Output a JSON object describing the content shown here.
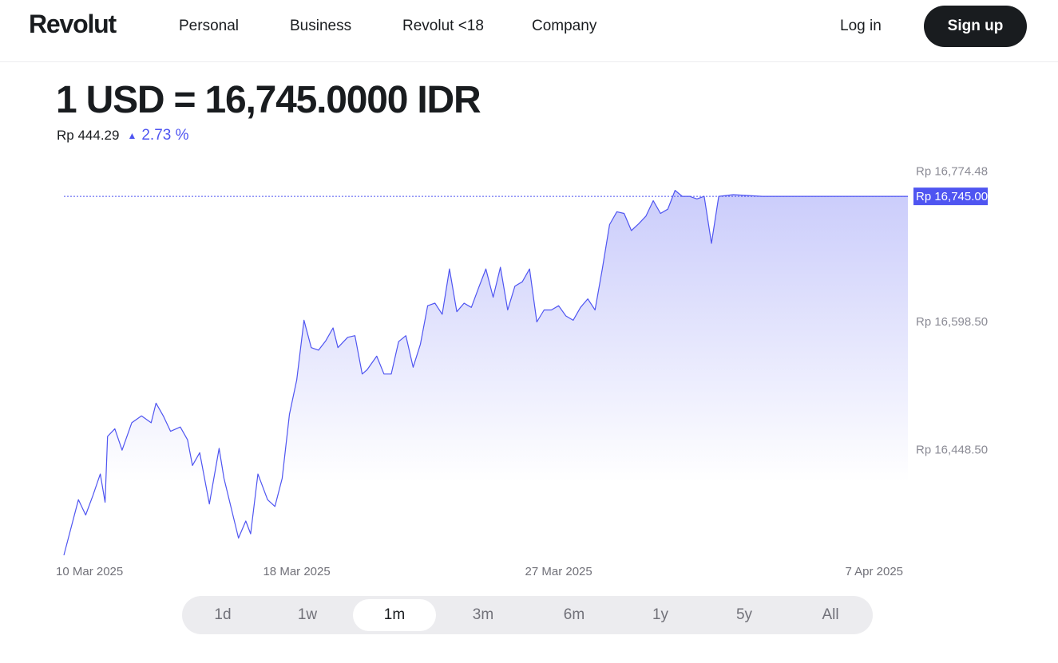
{
  "header": {
    "logo": "Revolut",
    "nav": [
      "Personal",
      "Business",
      "Revolut <18",
      "Company"
    ],
    "login_label": "Log in",
    "signup_label": "Sign up"
  },
  "rate": {
    "title": "1 USD = 16,745.0000 IDR",
    "change_amount": "Rp 444.29",
    "change_direction": "up",
    "change_percent": "2.73 %",
    "accent_color": "#4f55f1"
  },
  "range": {
    "options": [
      "1d",
      "1w",
      "1m",
      "3m",
      "6m",
      "1y",
      "5y",
      "All"
    ],
    "selected": "1m"
  },
  "chart_data": {
    "type": "area",
    "title": "",
    "xlabel": "",
    "ylabel": "",
    "series": [
      {
        "name": "",
        "color": "#4f55f1"
      }
    ],
    "x_range": [
      "2025-03-10",
      "2025-04-08"
    ],
    "ylim": [
      16323,
      16775
    ],
    "y_ticks": [
      {
        "value": 16774.48,
        "label": "Rp 16,774.48"
      },
      {
        "value": 16598.5,
        "label": "Rp 16,598.50"
      },
      {
        "value": 16448.5,
        "label": "Rp 16,448.50"
      }
    ],
    "x_ticks": [
      {
        "date": "2025-03-10",
        "label": "10 Mar 2025"
      },
      {
        "date": "2025-03-18",
        "label": "18 Mar 2025"
      },
      {
        "date": "2025-03-27",
        "label": "27 Mar 2025"
      },
      {
        "date": "2025-04-07",
        "label": "7 Apr 2025"
      }
    ],
    "current": {
      "value": 16745.0,
      "label": "Rp 16,745.00"
    },
    "points": [
      [
        "2025-03-10",
        16325
      ],
      [
        "2025-03-10T12:00",
        16390
      ],
      [
        "2025-03-10T18:00",
        16372
      ],
      [
        "2025-03-11",
        16395
      ],
      [
        "2025-03-11T06:00",
        16420
      ],
      [
        "2025-03-11T10:00",
        16387
      ],
      [
        "2025-03-11T12:00",
        16464
      ],
      [
        "2025-03-11T18:00",
        16473
      ],
      [
        "2025-03-12",
        16448
      ],
      [
        "2025-03-12T08:00",
        16480
      ],
      [
        "2025-03-12T16:00",
        16488
      ],
      [
        "2025-03-13",
        16480
      ],
      [
        "2025-03-13T04:00",
        16503
      ],
      [
        "2025-03-13T10:00",
        16488
      ],
      [
        "2025-03-13T16:00",
        16470
      ],
      [
        "2025-03-14",
        16475
      ],
      [
        "2025-03-14T06:00",
        16460
      ],
      [
        "2025-03-14T10:00",
        16430
      ],
      [
        "2025-03-14T16:00",
        16445
      ],
      [
        "2025-03-15",
        16385
      ],
      [
        "2025-03-15T08:00",
        16450
      ],
      [
        "2025-03-15T12:00",
        16415
      ],
      [
        "2025-03-15T18:00",
        16380
      ],
      [
        "2025-03-16",
        16345
      ],
      [
        "2025-03-16T06:00",
        16365
      ],
      [
        "2025-03-16T10:00",
        16350
      ],
      [
        "2025-03-16T16:00",
        16420
      ],
      [
        "2025-03-17",
        16390
      ],
      [
        "2025-03-17T06:00",
        16382
      ],
      [
        "2025-03-17T12:00",
        16415
      ],
      [
        "2025-03-17T18:00",
        16490
      ],
      [
        "2025-03-18",
        16530
      ],
      [
        "2025-03-18T06:00",
        16600
      ],
      [
        "2025-03-18T12:00",
        16568
      ],
      [
        "2025-03-18T18:00",
        16565
      ],
      [
        "2025-03-19",
        16576
      ],
      [
        "2025-03-19T06:00",
        16591
      ],
      [
        "2025-03-19T10:00",
        16568
      ],
      [
        "2025-03-19T18:00",
        16580
      ],
      [
        "2025-03-20",
        16582
      ],
      [
        "2025-03-20T06:00",
        16537
      ],
      [
        "2025-03-20T10:00",
        16542
      ],
      [
        "2025-03-20T18:00",
        16558
      ],
      [
        "2025-03-21",
        16537
      ],
      [
        "2025-03-21T06:00",
        16537
      ],
      [
        "2025-03-21T12:00",
        16575
      ],
      [
        "2025-03-21T18:00",
        16582
      ],
      [
        "2025-03-22",
        16545
      ],
      [
        "2025-03-22T06:00",
        16572
      ],
      [
        "2025-03-22T12:00",
        16617
      ],
      [
        "2025-03-22T18:00",
        16620
      ],
      [
        "2025-03-23",
        16607
      ],
      [
        "2025-03-23T06:00",
        16660
      ],
      [
        "2025-03-23T12:00",
        16610
      ],
      [
        "2025-03-23T18:00",
        16620
      ],
      [
        "2025-03-24",
        16615
      ],
      [
        "2025-03-24T06:00",
        16638
      ],
      [
        "2025-03-24T12:00",
        16660
      ],
      [
        "2025-03-24T18:00",
        16627
      ],
      [
        "2025-03-25",
        16662
      ],
      [
        "2025-03-25T06:00",
        16612
      ],
      [
        "2025-03-25T12:00",
        16640
      ],
      [
        "2025-03-25T18:00",
        16645
      ],
      [
        "2025-03-26",
        16660
      ],
      [
        "2025-03-26T06:00",
        16598
      ],
      [
        "2025-03-26T12:00",
        16612
      ],
      [
        "2025-03-26T18:00",
        16612
      ],
      [
        "2025-03-27",
        16617
      ],
      [
        "2025-03-27T06:00",
        16605
      ],
      [
        "2025-03-27T12:00",
        16600
      ],
      [
        "2025-03-27T18:00",
        16615
      ],
      [
        "2025-03-28",
        16625
      ],
      [
        "2025-03-28T06:00",
        16612
      ],
      [
        "2025-03-28T12:00",
        16660
      ],
      [
        "2025-03-28T18:00",
        16712
      ],
      [
        "2025-03-29",
        16727
      ],
      [
        "2025-03-29T06:00",
        16725
      ],
      [
        "2025-03-29T12:00",
        16705
      ],
      [
        "2025-03-29T18:00",
        16713
      ],
      [
        "2025-03-30",
        16722
      ],
      [
        "2025-03-30T06:00",
        16740
      ],
      [
        "2025-03-30T12:00",
        16725
      ],
      [
        "2025-03-30T18:00",
        16730
      ],
      [
        "2025-03-31",
        16752
      ],
      [
        "2025-03-31T06:00",
        16745
      ],
      [
        "2025-03-31T12:00",
        16745
      ],
      [
        "2025-03-31T18:00",
        16742
      ],
      [
        "2025-04-01",
        16745
      ],
      [
        "2025-04-01T06:00",
        16690
      ],
      [
        "2025-04-01T12:00",
        16745
      ],
      [
        "2025-04-02",
        16747
      ],
      [
        "2025-04-03",
        16745
      ],
      [
        "2025-04-04",
        16745
      ],
      [
        "2025-04-05",
        16745
      ],
      [
        "2025-04-06",
        16745
      ],
      [
        "2025-04-07",
        16745
      ],
      [
        "2025-04-08",
        16745
      ]
    ]
  }
}
